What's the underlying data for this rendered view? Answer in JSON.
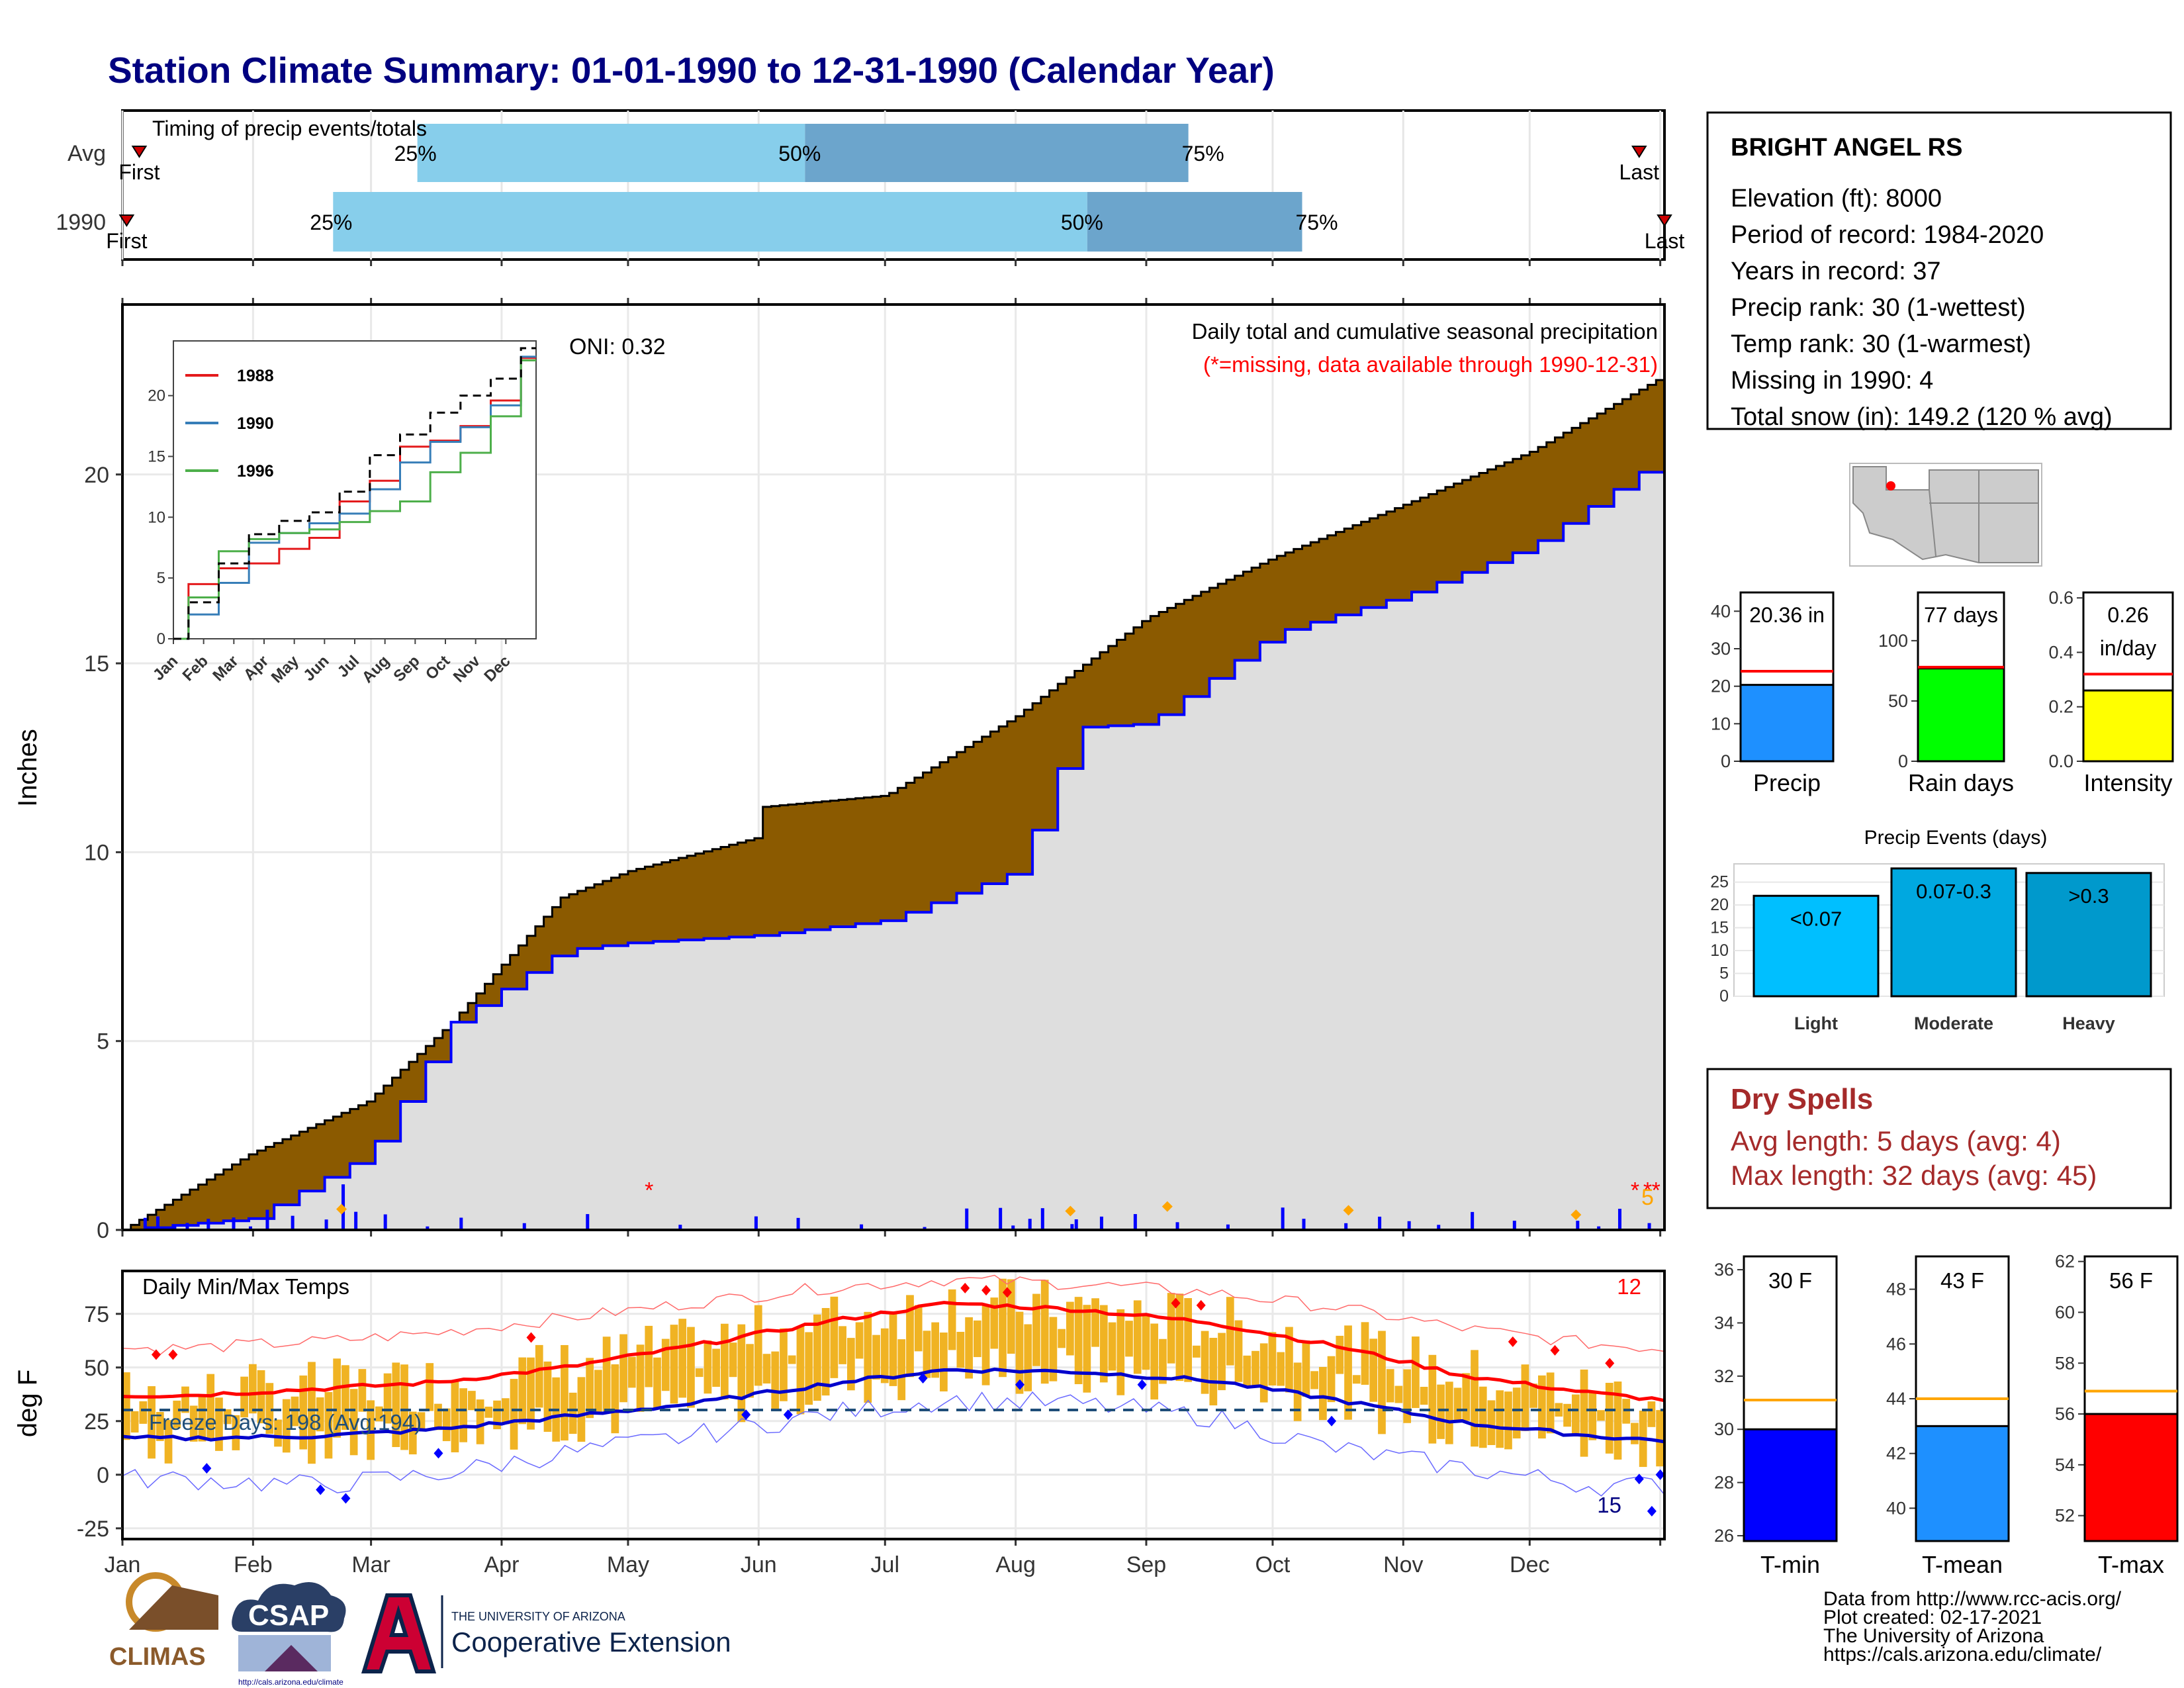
{
  "title": "Station Climate Summary: 01-01-1990 to 12-31-1990 (Calendar Year)",
  "months": [
    "Jan",
    "Feb",
    "Mar",
    "Apr",
    "May",
    "Jun",
    "Jul",
    "Aug",
    "Sep",
    "Oct",
    "Nov",
    "Dec"
  ],
  "timing_panel": {
    "label": "Timing of precip events/totals",
    "rows": [
      "Avg",
      "1990"
    ],
    "avg": {
      "first_label": "First",
      "last_label": "Last",
      "q25": "25%",
      "q50": "50%",
      "q75": "75%",
      "q25_day": 70,
      "q50_day": 162,
      "q75_day": 253,
      "first_day": 4,
      "last_day": 360
    },
    "y1990": {
      "first_label": "First",
      "last_label": "Last",
      "q25": "25%",
      "q50": "50%",
      "q75": "75%",
      "q25_day": 50,
      "q50_day": 229,
      "q75_day": 280,
      "first_day": 1,
      "last_day": 366
    }
  },
  "precip_panel": {
    "ylabel": "Inches",
    "title": "Daily total and cumulative seasonal precipitation",
    "missing_note": "(*=missing, data available through 1990-12-31)",
    "oni": "ONI: 0.32",
    "ylim": [
      0,
      24.5
    ],
    "yticks": [
      0,
      5,
      10,
      15,
      20
    ],
    "corner_count": "5"
  },
  "inset": {
    "yticks": [
      "0",
      "5",
      "10",
      "15",
      "20"
    ],
    "legend": [
      "1988",
      "1990",
      "1996"
    ],
    "colors": {
      "1988": "#e41a1c",
      "1990": "#377eb8",
      "1996": "#4daf4a"
    }
  },
  "temp_panel": {
    "ylabel": "deg F",
    "label": "Daily Min/Max Temps",
    "freeze_text": "Freeze Days: 198 (Avg:194)",
    "count_hi": "12",
    "count_lo": "15",
    "yticks": [
      "75",
      "50",
      "25",
      "0",
      "-25"
    ],
    "ylim": [
      -30,
      95
    ]
  },
  "station": {
    "name": "BRIGHT ANGEL RS",
    "lines": [
      "Elevation (ft): 8000",
      "Period of record: 1984-2020",
      "Years in record: 37",
      "Precip rank: 30 (1-wettest)",
      "Temp rank: 30 (1-warmest)",
      "Missing in 1990: 4",
      "Total snow (in): 149.2 (120 % avg)"
    ]
  },
  "mini_bars": [
    {
      "label": "Precip",
      "value_text": "20.36 in",
      "value": 20.36,
      "avg": 24.0,
      "ymax": 45,
      "ticks": [
        "0",
        "10",
        "20",
        "30",
        "40"
      ],
      "tick_vals": [
        0,
        10,
        20,
        30,
        40
      ],
      "color": "#1e90ff"
    },
    {
      "label": "Rain days",
      "value_text": "77 days",
      "value": 77,
      "avg": 78,
      "ymax": 140,
      "ticks": [
        "0",
        "50",
        "100"
      ],
      "tick_vals": [
        0,
        50,
        100
      ],
      "color": "#00ff00"
    },
    {
      "label": "Intensity",
      "value_text": "0.26",
      "value_text2": "in/day",
      "value": 0.26,
      "avg": 0.32,
      "ymax": 0.62,
      "ticks": [
        "0.0",
        "0.2",
        "0.4",
        "0.6"
      ],
      "tick_vals": [
        0,
        0.2,
        0.4,
        0.6
      ],
      "color": "#ffff00"
    }
  ],
  "precip_events": {
    "title": "Precip Events (days)",
    "categories": [
      "Light",
      "Moderate",
      "Heavy"
    ],
    "bar_labels": [
      "<0.07",
      "0.07-0.3",
      ">0.3"
    ],
    "values": [
      22,
      28,
      27
    ],
    "ticks": [
      "0",
      "5",
      "10",
      "15",
      "20",
      "25"
    ],
    "colors": [
      "#00bfff",
      "#00a8e0",
      "#0099cc"
    ]
  },
  "dry_spells": {
    "title": "Dry Spells",
    "avg_length": "Avg length: 5 days (avg: 4)",
    "max_length": "Max length: 32 days (avg: 45)"
  },
  "temp_bars": [
    {
      "label": "T-min",
      "value_text": "30 F",
      "value": 30,
      "avg": 31.1,
      "ylim": [
        25.8,
        36.5
      ],
      "ticks": [
        "26",
        "28",
        "30",
        "32",
        "34",
        "36"
      ],
      "tick_vals": [
        26,
        28,
        30,
        32,
        34,
        36
      ],
      "color": "#0000ff"
    },
    {
      "label": "T-mean",
      "value_text": "43 F",
      "value": 43,
      "avg": 44.0,
      "ylim": [
        38.8,
        49.2
      ],
      "ticks": [
        "40",
        "42",
        "44",
        "46",
        "48"
      ],
      "tick_vals": [
        40,
        42,
        44,
        46,
        48
      ],
      "color": "#1e90ff"
    },
    {
      "label": "T-max",
      "value_text": "56 F",
      "value": 56,
      "avg": 56.9,
      "ylim": [
        51.0,
        62.2
      ],
      "ticks": [
        "52",
        "54",
        "56",
        "58",
        "60",
        "62"
      ],
      "tick_vals": [
        52,
        54,
        56,
        58,
        60,
        62
      ],
      "color": "#ff0000"
    }
  ],
  "footer": [
    "Data from http://www.rcc-acis.org/",
    "Plot created: 02-17-2021",
    "The University of Arizona",
    "https://cals.arizona.edu/climate/"
  ],
  "logos": {
    "climas": "CLIMAS",
    "csap": "CSAP",
    "csap_url": "http://cals.arizona.edu/climate",
    "ua_line1": "THE UNIVERSITY OF ARIZONA",
    "ua_line2": "Cooperative Extension"
  },
  "chart_data": [
    {
      "type": "area",
      "title": "Daily total and cumulative seasonal precipitation",
      "ylabel": "Inches",
      "ylim": [
        0,
        24.5
      ],
      "series": [
        {
          "name": "",
          "x": [
            "Jan 1",
            "Jan 31",
            "Feb 28",
            "Mar 20",
            "Apr 15",
            "May 1",
            "Jun 1",
            "Jun 2",
            "Jul 1",
            "Aug 1",
            "Aug 15",
            "Sep 1",
            "Oct 1",
            "Nov 1",
            "Dec 1",
            "Dec 31"
          ],
          "values": [
            0,
            2.0,
            3.4,
            5.5,
            8.8,
            9.5,
            10.4,
            11.2,
            11.5,
            13.6,
            14.8,
            16.2,
            17.8,
            19.2,
            20.6,
            22.5
          ]
        },
        {
          "name": "",
          "x": [
            "Jan 1",
            "Jan 31",
            "Feb 28",
            "Mar 20",
            "Apr 15",
            "May 1",
            "Jun 1",
            "Jul 1",
            "Aug 1",
            "Aug 15",
            "Sep 1",
            "Oct 1",
            "Nov 1",
            "Dec 1",
            "Dec 31"
          ],
          "values": [
            0,
            0.3,
            2.0,
            5.5,
            7.4,
            7.6,
            7.8,
            8.2,
            9.5,
            13.3,
            13.4,
            15.8,
            16.8,
            18.1,
            20.36
          ]
        }
      ]
    },
    {
      "type": "line",
      "xlabel": "",
      "ylabel": "",
      "x": [
        "Jan",
        "Feb",
        "Mar",
        "Apr",
        "May",
        "Jun",
        "Jul",
        "Aug",
        "Sep",
        "Oct",
        "Nov",
        "Dec",
        "Dec31"
      ],
      "series": [
        {
          "name": "1988",
          "values": [
            0,
            4.5,
            5.8,
            6.2,
            7.4,
            8.3,
            11.3,
            13.0,
            15.8,
            16.3,
            17.5,
            19.6,
            23.1
          ]
        },
        {
          "name": "1990",
          "values": [
            0,
            2.0,
            4.6,
            7.9,
            8.7,
            9.5,
            10.3,
            12.3,
            14.5,
            16.2,
            17.4,
            19.2,
            23.2
          ]
        },
        {
          "name": "1996",
          "values": [
            0,
            3.4,
            7.2,
            8.2,
            8.7,
            9.0,
            9.6,
            10.5,
            11.3,
            13.7,
            15.3,
            18.3,
            22.9
          ]
        },
        {
          "name": "",
          "values": [
            0,
            3.0,
            6.2,
            8.6,
            9.7,
            10.4,
            12.1,
            15.1,
            16.8,
            18.6,
            20.0,
            21.4,
            23.9
          ]
        }
      ]
    },
    {
      "type": "line",
      "title": "Daily Min/Max Temps",
      "ylabel": "deg F",
      "ylim": [
        -30,
        95
      ],
      "x": [
        "Jan",
        "Feb",
        "Mar",
        "Apr",
        "May",
        "Jun",
        "Jul",
        "Aug",
        "Sep",
        "Oct",
        "Nov",
        "Dec",
        "Dec31"
      ],
      "series": [
        {
          "name": "",
          "values": [
            59,
            62,
            66,
            73,
            80,
            87,
            91,
            89,
            85,
            78,
            68,
            61,
            59
          ]
        },
        {
          "name": "",
          "values": [
            37,
            40,
            43,
            50,
            60,
            71,
            80,
            77,
            71,
            60,
            46,
            38,
            35
          ]
        },
        {
          "name": "",
          "values": [
            17,
            18,
            21,
            27,
            33,
            42,
            49,
            48,
            44,
            35,
            24,
            18,
            16
          ]
        },
        {
          "name": "",
          "values": [
            -2,
            -5,
            0,
            10,
            18,
            28,
            35,
            33,
            27,
            12,
            3,
            -5,
            -5
          ]
        }
      ]
    }
  ]
}
